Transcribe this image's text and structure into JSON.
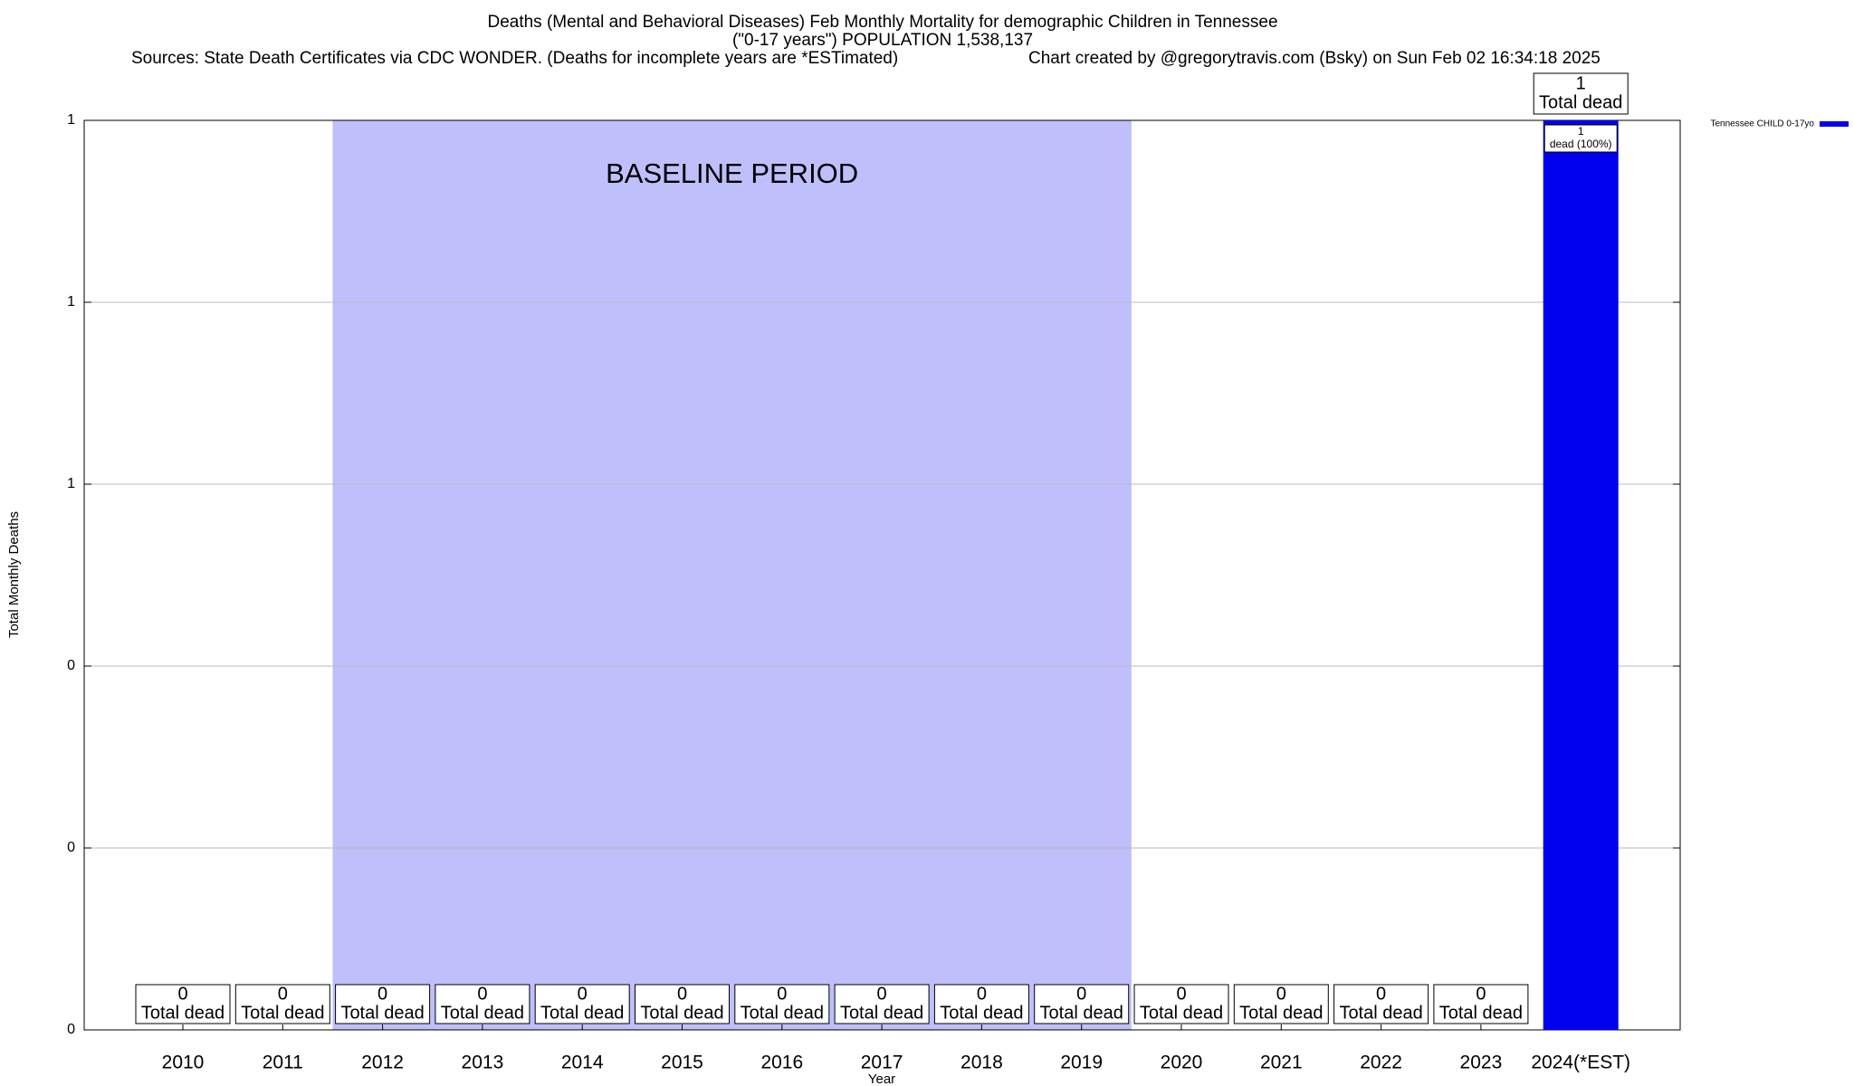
{
  "chart_data": {
    "type": "bar",
    "title": "Deaths (Mental and Behavioral Diseases) Feb Monthly Mortality for demographic Children in Tennessee",
    "subtitle": "(\"0-17 years\") POPULATION 1,538,137",
    "sources": "Sources: State Death Certificates via CDC WONDER. (Deaths for incomplete years are *ESTimated)",
    "credit": "Chart created by @gregorytravis.com (Bsky) on Sun Feb 02 16:34:18 2025",
    "xlabel": "Year",
    "ylabel": "Total Monthly Deaths",
    "categories": [
      "2010",
      "2011",
      "2012",
      "2013",
      "2014",
      "2015",
      "2016",
      "2017",
      "2018",
      "2019",
      "2020",
      "2021",
      "2022",
      "2023",
      "2024(*EST)"
    ],
    "series": [
      {
        "name": "Tennessee CHILD 0-17yo",
        "color": "#0000ee",
        "values": [
          0,
          0,
          0,
          0,
          0,
          0,
          0,
          0,
          0,
          0,
          0,
          0,
          0,
          0,
          1
        ]
      }
    ],
    "total_label": "Total dead",
    "bar_inner_label": "dead (100%)",
    "baseline": {
      "label": "BASELINE PERIOD",
      "start": "2012",
      "end": "2019",
      "color": "#bfbffc"
    },
    "ylim": [
      0,
      1
    ],
    "yticks": [
      0,
      {
        "value": 0.2,
        "label": "0"
      },
      {
        "value": 0.4,
        "label": "0"
      },
      {
        "value": 0.6,
        "label": "1"
      },
      {
        "value": 0.8,
        "label": "1"
      },
      1
    ],
    "grid": true,
    "legend": "top-right"
  }
}
